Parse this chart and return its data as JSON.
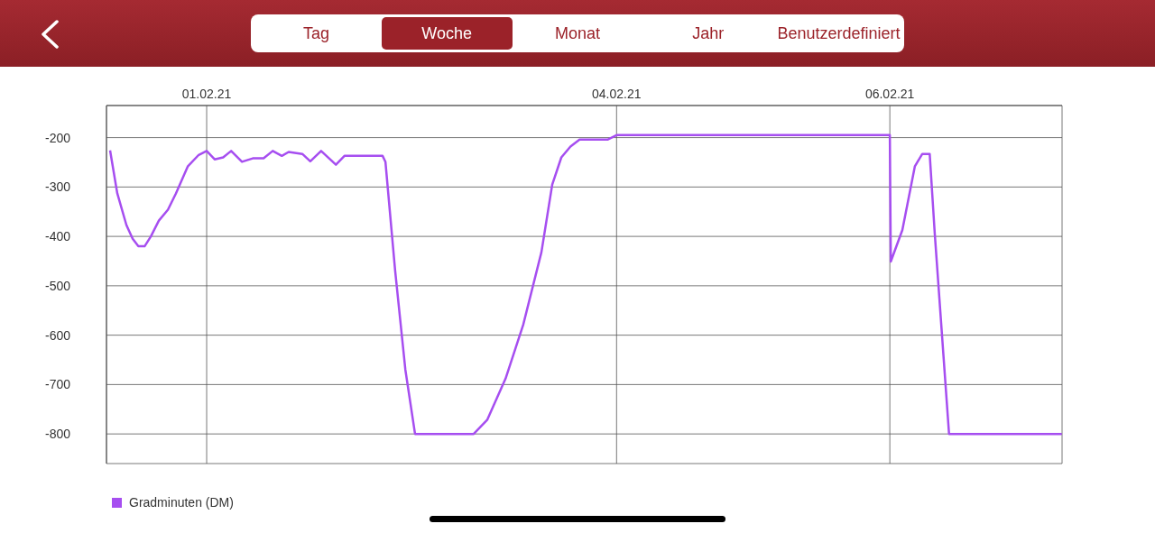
{
  "chart_data": {
    "type": "line",
    "annotations": [
      "Tag",
      "Woche",
      "Monat",
      "Jahr",
      "Benutzerdefiniert"
    ],
    "x": [
      "--01-31T07:02",
      "--01-31T08:18",
      "--01-31T09:54",
      "--01-31T11:00",
      "--01-31T12:00",
      "--01-31T13:06",
      "--01-31T14:12",
      "--01-31T15:36",
      "--01-31T17:12",
      "--01-31T18:36",
      "--01-31T20:42",
      "--01-31T22:36",
      "--02-01T00:00",
      "--02-01T01:24",
      "--02-01T02:54",
      "--02-01T04:18",
      "--02-01T06:12",
      "--02-01T08:06",
      "--02-01T10:00",
      "--02-01T11:36",
      "--02-01T13:12",
      "--02-01T14:24",
      "--02-01T16:48",
      "--02-01T18:12",
      "--02-01T20:06",
      "--02-01T22:42",
      "--02-02T00:12",
      "--02-02T06:54",
      "--02-02T07:24",
      "--02-02T09:06",
      "--02-02T10:54",
      "--02-02T12:36",
      "--02-02T22:54",
      "--02-03T01:18",
      "--02-03T04:30",
      "--02-03T07:36",
      "--02-03T10:48",
      "--02-03T12:42",
      "--02-03T14:18",
      "--02-03T15:54",
      "--02-03T17:30",
      "--02-03T22:24",
      "--02-04T00:00",
      "--02-06T00:00",
      "--02-06T00:10",
      "--02-06T02:12",
      "--02-06T04:24",
      "--02-06T05:42",
      "--02-06T07:00",
      "--02-06T07:54",
      "--02-06T10:24",
      "--02-07T06:12"
    ],
    "series": [
      {
        "name": "Gradminuten (DM)",
        "color": "#a64ef0",
        "values": [
          -226,
          -313,
          -377,
          -405,
          -420,
          -420,
          -400,
          -368,
          -346,
          -313,
          -258,
          -235,
          -227,
          -244,
          -240,
          -227,
          -249,
          -242,
          -242,
          -227,
          -237,
          -229,
          -233,
          -248,
          -227,
          -255,
          -237,
          -237,
          -249,
          -469,
          -670,
          -800,
          -800,
          -771,
          -688,
          -579,
          -432,
          -295,
          -240,
          -218,
          -204,
          -204,
          -195,
          -195,
          -451,
          -387,
          -258,
          -233,
          -233,
          -396,
          -800,
          -800
        ]
      }
    ],
    "xlim": [
      "--01-31T06:24",
      "--02-07T06:15"
    ],
    "xticks": [
      {
        "value": "--02-01",
        "label": "01.02.21"
      },
      {
        "value": "--02-04",
        "label": "04.02.21"
      },
      {
        "value": "--02-06",
        "label": "06.02.21"
      }
    ],
    "ylim": [
      -860,
      -135
    ],
    "yticks": [
      -800,
      -700,
      -600,
      -500,
      -400,
      -300,
      -200
    ],
    "grid": true,
    "legend": "bottom left",
    "marker": "none",
    "line_style": "solid"
  }
}
